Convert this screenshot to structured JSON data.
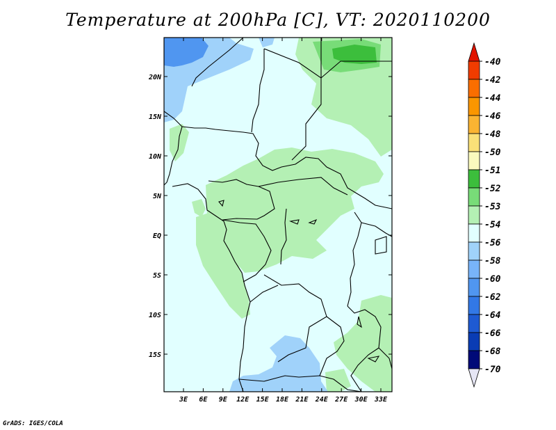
{
  "title": "Temperature at 200hPa [C], VT: 2020110200",
  "footer": "GrADS: IGES/COLA",
  "map": {
    "lat_labels": [
      "20N",
      "15N",
      "10N",
      "5N",
      "EQ",
      "5S",
      "10S",
      "15S"
    ],
    "lon_labels": [
      "3E",
      "6E",
      "9E",
      "12E",
      "15E",
      "18E",
      "21E",
      "24E",
      "27E",
      "30E",
      "33E"
    ]
  },
  "colorbar": {
    "levels": [
      "-40",
      "-42",
      "-44",
      "-46",
      "-48",
      "-50",
      "-51",
      "-52",
      "-53",
      "-54",
      "-56",
      "-58",
      "-60",
      "-62",
      "-64",
      "-66",
      "-68",
      "-70"
    ],
    "colors": [
      "#e11400",
      "#f03c00",
      "#fa6e00",
      "#fa9600",
      "#fab432",
      "#fae178",
      "#fafabe",
      "#3cbe3c",
      "#78dc78",
      "#b4f0b4",
      "#e1ffff",
      "#a0d2fa",
      "#78b4fa",
      "#5096f0",
      "#3278e6",
      "#1e5ad2",
      "#0a3cb4",
      "#000a78",
      "#e6e6f5"
    ]
  }
}
